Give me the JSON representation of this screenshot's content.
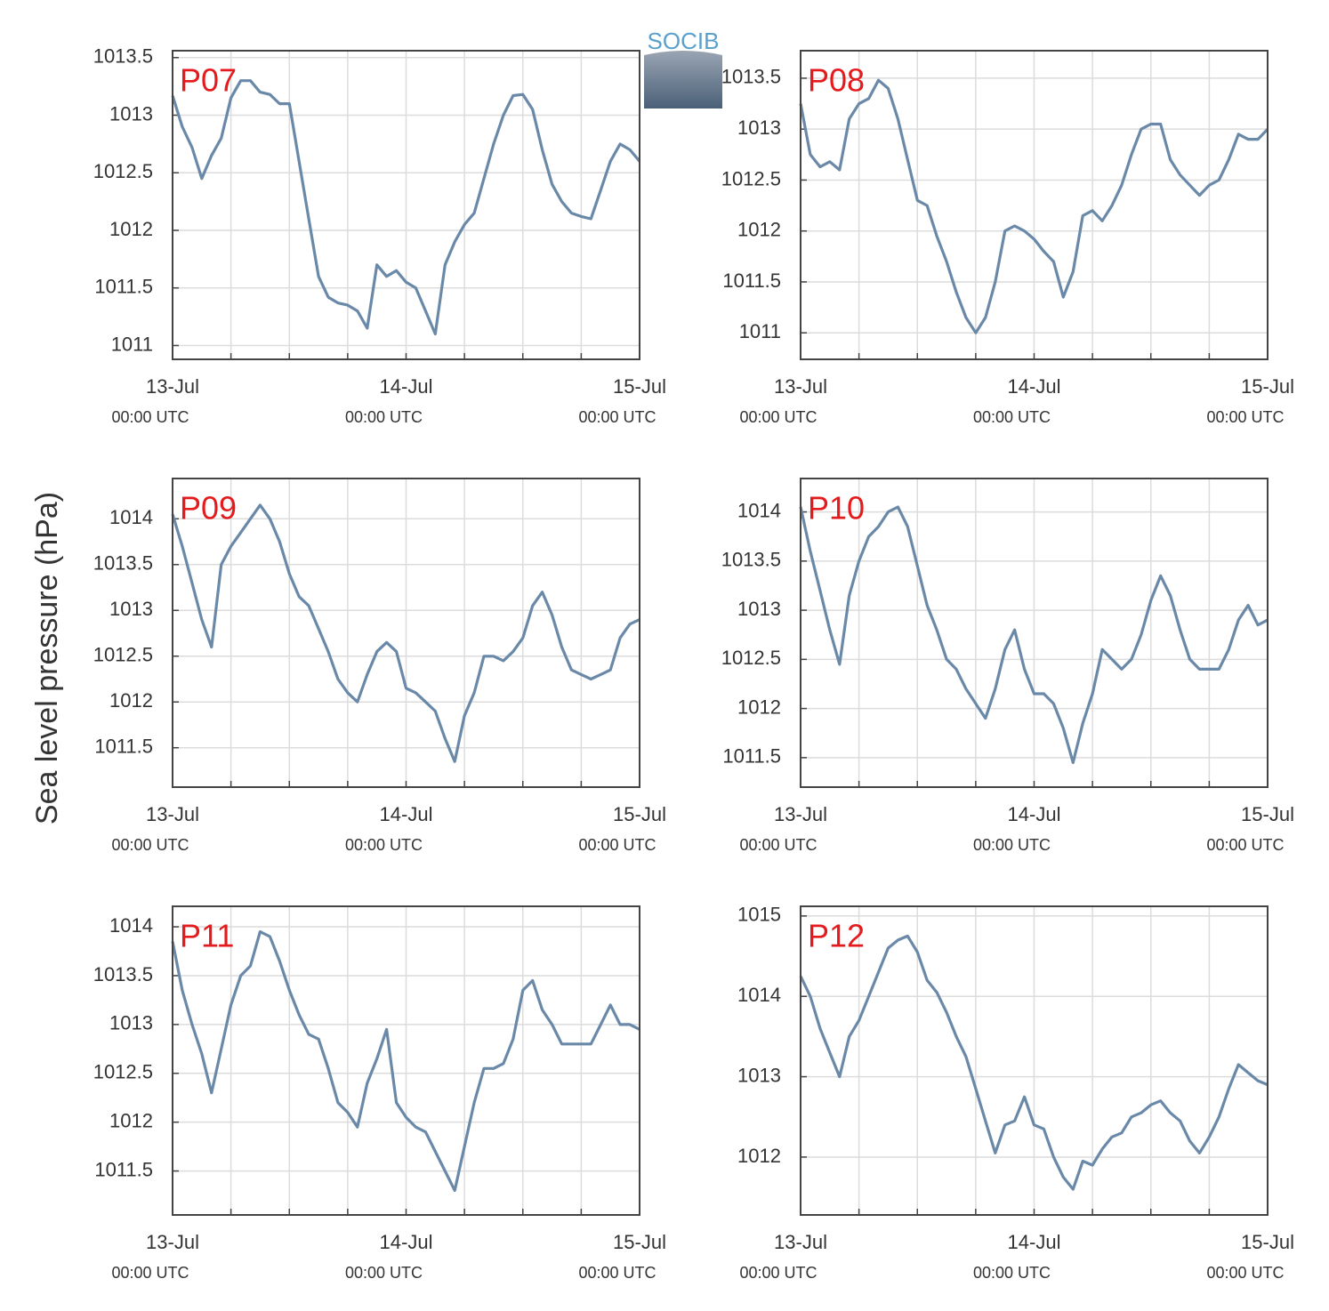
{
  "ylabel": "Sea level pressure (hPa)",
  "logo": "SOCIB",
  "chart_data": [
    {
      "type": "line",
      "title": "P07",
      "x": [
        0,
        1,
        2,
        3,
        4,
        5,
        6,
        7,
        8,
        9,
        10,
        11,
        12,
        13,
        14,
        15,
        16,
        17,
        18,
        19,
        20,
        21,
        22,
        23,
        24,
        25,
        26,
        27,
        28,
        29,
        30,
        31,
        32,
        33,
        34,
        35,
        36,
        37,
        38,
        39,
        40,
        41,
        42,
        43,
        44,
        45,
        46,
        47,
        48
      ],
      "series": [
        {
          "name": "P07",
          "color": "#6a89a8",
          "values": [
            1013.17,
            1012.9,
            1012.72,
            1012.45,
            1012.65,
            1012.8,
            1013.15,
            1013.3,
            1013.3,
            1013.2,
            1013.18,
            1013.1,
            1013.1,
            1012.6,
            1012.1,
            1011.6,
            1011.42,
            1011.37,
            1011.35,
            1011.3,
            1011.15,
            1011.7,
            1011.6,
            1011.65,
            1011.55,
            1011.5,
            1011.3,
            1011.1,
            1011.7,
            1011.9,
            1012.05,
            1012.15,
            1012.45,
            1012.75,
            1013.0,
            1013.17,
            1013.18,
            1013.05,
            1012.7,
            1012.4,
            1012.25,
            1012.15,
            1012.12,
            1012.1,
            1012.35,
            1012.6,
            1012.75,
            1012.7,
            1012.6
          ]
        }
      ],
      "xlim": [
        0,
        48
      ],
      "ylim": [
        1010.88,
        1013.56
      ],
      "yticks": [
        1011,
        1011.5,
        1012,
        1012.5,
        1013,
        1013.5
      ],
      "xticks": [
        {
          "value": 0,
          "label": "13-Jul",
          "sublabel": "00:00 UTC"
        },
        {
          "value": 24,
          "label": "14-Jul",
          "sublabel": "00:00 UTC"
        },
        {
          "value": 48,
          "label": "15-Jul",
          "sublabel": "00:00 UTC"
        }
      ],
      "xminor": [
        6,
        12,
        18,
        30,
        36,
        42
      ],
      "grid": true
    },
    {
      "type": "line",
      "title": "P08",
      "x": [
        0,
        1,
        2,
        3,
        4,
        5,
        6,
        7,
        8,
        9,
        10,
        11,
        12,
        13,
        14,
        15,
        16,
        17,
        18,
        19,
        20,
        21,
        22,
        23,
        24,
        25,
        26,
        27,
        28,
        29,
        30,
        31,
        32,
        33,
        34,
        35,
        36,
        37,
        38,
        39,
        40,
        41,
        42,
        43,
        44,
        45,
        46,
        47,
        48
      ],
      "series": [
        {
          "name": "P08",
          "color": "#6a89a8",
          "values": [
            1013.25,
            1012.75,
            1012.63,
            1012.68,
            1012.6,
            1013.1,
            1013.25,
            1013.3,
            1013.48,
            1013.4,
            1013.1,
            1012.7,
            1012.3,
            1012.25,
            1011.95,
            1011.7,
            1011.4,
            1011.15,
            1011.0,
            1011.15,
            1011.5,
            1012.0,
            1012.05,
            1012.0,
            1011.92,
            1011.8,
            1011.7,
            1011.35,
            1011.6,
            1012.15,
            1012.2,
            1012.1,
            1012.25,
            1012.45,
            1012.75,
            1013.0,
            1013.05,
            1013.05,
            1012.7,
            1012.55,
            1012.45,
            1012.35,
            1012.45,
            1012.5,
            1012.7,
            1012.95,
            1012.9,
            1012.9,
            1013.0
          ]
        }
      ],
      "xlim": [
        0,
        48
      ],
      "ylim": [
        1010.74,
        1013.77
      ],
      "yticks": [
        1011,
        1011.5,
        1012,
        1012.5,
        1013,
        1013.5
      ],
      "xticks": [
        {
          "value": 0,
          "label": "13-Jul",
          "sublabel": "00:00 UTC"
        },
        {
          "value": 24,
          "label": "14-Jul",
          "sublabel": "00:00 UTC"
        },
        {
          "value": 48,
          "label": "15-Jul",
          "sublabel": "00:00 UTC"
        }
      ],
      "xminor": [
        6,
        12,
        18,
        30,
        36,
        42
      ],
      "grid": true
    },
    {
      "type": "line",
      "title": "P09",
      "x": [
        0,
        1,
        2,
        3,
        4,
        5,
        6,
        7,
        8,
        9,
        10,
        11,
        12,
        13,
        14,
        15,
        16,
        17,
        18,
        19,
        20,
        21,
        22,
        23,
        24,
        25,
        26,
        27,
        28,
        29,
        30,
        31,
        32,
        33,
        34,
        35,
        36,
        37,
        38,
        39,
        40,
        41,
        42,
        43,
        44,
        45,
        46,
        47,
        48
      ],
      "series": [
        {
          "name": "P09",
          "color": "#6a89a8",
          "values": [
            1014.05,
            1013.7,
            1013.3,
            1012.9,
            1012.6,
            1013.5,
            1013.7,
            1013.85,
            1014.0,
            1014.15,
            1014.0,
            1013.75,
            1013.4,
            1013.15,
            1013.05,
            1012.8,
            1012.55,
            1012.25,
            1012.1,
            1012.0,
            1012.3,
            1012.55,
            1012.65,
            1012.55,
            1012.15,
            1012.1,
            1012.0,
            1011.9,
            1011.6,
            1011.35,
            1011.85,
            1012.1,
            1012.5,
            1012.5,
            1012.45,
            1012.55,
            1012.7,
            1013.05,
            1013.2,
            1012.95,
            1012.6,
            1012.35,
            1012.3,
            1012.25,
            1012.3,
            1012.35,
            1012.7,
            1012.85,
            1012.9
          ]
        }
      ],
      "xlim": [
        0,
        48
      ],
      "ylim": [
        1011.07,
        1014.44
      ],
      "yticks": [
        1011.5,
        1012,
        1012.5,
        1013,
        1013.5,
        1014
      ],
      "xticks": [
        {
          "value": 0,
          "label": "13-Jul",
          "sublabel": "00:00 UTC"
        },
        {
          "value": 24,
          "label": "14-Jul",
          "sublabel": "00:00 UTC"
        },
        {
          "value": 48,
          "label": "15-Jul",
          "sublabel": "00:00 UTC"
        }
      ],
      "xminor": [
        6,
        12,
        18,
        30,
        36,
        42
      ],
      "grid": true
    },
    {
      "type": "line",
      "title": "P10",
      "x": [
        0,
        1,
        2,
        3,
        4,
        5,
        6,
        7,
        8,
        9,
        10,
        11,
        12,
        13,
        14,
        15,
        16,
        17,
        18,
        19,
        20,
        21,
        22,
        23,
        24,
        25,
        26,
        27,
        28,
        29,
        30,
        31,
        32,
        33,
        34,
        35,
        36,
        37,
        38,
        39,
        40,
        41,
        42,
        43,
        44,
        45,
        46,
        47,
        48
      ],
      "series": [
        {
          "name": "P10",
          "color": "#6a89a8",
          "values": [
            1014.05,
            1013.6,
            1013.2,
            1012.8,
            1012.45,
            1013.15,
            1013.5,
            1013.75,
            1013.85,
            1014.0,
            1014.05,
            1013.85,
            1013.45,
            1013.05,
            1012.8,
            1012.5,
            1012.4,
            1012.2,
            1012.05,
            1011.9,
            1012.2,
            1012.6,
            1012.8,
            1012.4,
            1012.15,
            1012.15,
            1012.05,
            1011.8,
            1011.45,
            1011.85,
            1012.15,
            1012.6,
            1012.5,
            1012.4,
            1012.5,
            1012.75,
            1013.1,
            1013.35,
            1013.15,
            1012.8,
            1012.5,
            1012.4,
            1012.4,
            1012.4,
            1012.6,
            1012.9,
            1013.05,
            1012.85,
            1012.9
          ]
        }
      ],
      "xlim": [
        0,
        48
      ],
      "ylim": [
        1011.2,
        1014.34
      ],
      "yticks": [
        1011.5,
        1012,
        1012.5,
        1013,
        1013.5,
        1014
      ],
      "xticks": [
        {
          "value": 0,
          "label": "13-Jul",
          "sublabel": "00:00 UTC"
        },
        {
          "value": 24,
          "label": "14-Jul",
          "sublabel": "00:00 UTC"
        },
        {
          "value": 48,
          "label": "15-Jul",
          "sublabel": "00:00 UTC"
        }
      ],
      "xminor": [
        6,
        12,
        18,
        30,
        36,
        42
      ],
      "grid": true
    },
    {
      "type": "line",
      "title": "P11",
      "x": [
        0,
        1,
        2,
        3,
        4,
        5,
        6,
        7,
        8,
        9,
        10,
        11,
        12,
        13,
        14,
        15,
        16,
        17,
        18,
        19,
        20,
        21,
        22,
        23,
        24,
        25,
        26,
        27,
        28,
        29,
        30,
        31,
        32,
        33,
        34,
        35,
        36,
        37,
        38,
        39,
        40,
        41,
        42,
        43,
        44,
        45,
        46,
        47,
        48
      ],
      "series": [
        {
          "name": "P11",
          "color": "#6a89a8",
          "values": [
            1013.85,
            1013.35,
            1013.0,
            1012.7,
            1012.3,
            1012.75,
            1013.2,
            1013.5,
            1013.6,
            1013.95,
            1013.9,
            1013.65,
            1013.35,
            1013.1,
            1012.9,
            1012.85,
            1012.55,
            1012.2,
            1012.1,
            1011.95,
            1012.4,
            1012.65,
            1012.95,
            1012.2,
            1012.05,
            1011.95,
            1011.9,
            1011.7,
            1011.5,
            1011.3,
            1011.75,
            1012.2,
            1012.55,
            1012.55,
            1012.6,
            1012.85,
            1013.35,
            1013.45,
            1013.15,
            1013.0,
            1012.8,
            1012.8,
            1012.8,
            1012.8,
            1013.0,
            1013.2,
            1013.0,
            1013.0,
            1012.95
          ]
        }
      ],
      "xlim": [
        0,
        48
      ],
      "ylim": [
        1011.05,
        1014.21
      ],
      "yticks": [
        1011.5,
        1012,
        1012.5,
        1013,
        1013.5,
        1014
      ],
      "xticks": [
        {
          "value": 0,
          "label": "13-Jul",
          "sublabel": "00:00 UTC"
        },
        {
          "value": 24,
          "label": "14-Jul",
          "sublabel": "00:00 UTC"
        },
        {
          "value": 48,
          "label": "15-Jul",
          "sublabel": "00:00 UTC"
        }
      ],
      "xminor": [
        6,
        12,
        18,
        30,
        36,
        42
      ],
      "grid": true
    },
    {
      "type": "line",
      "title": "P12",
      "x": [
        0,
        1,
        2,
        3,
        4,
        5,
        6,
        7,
        8,
        9,
        10,
        11,
        12,
        13,
        14,
        15,
        16,
        17,
        18,
        19,
        20,
        21,
        22,
        23,
        24,
        25,
        26,
        27,
        28,
        29,
        30,
        31,
        32,
        33,
        34,
        35,
        36,
        37,
        38,
        39,
        40,
        41,
        42,
        43,
        44,
        45,
        46,
        47,
        48
      ],
      "series": [
        {
          "name": "P12",
          "color": "#6a89a8",
          "values": [
            1014.25,
            1014.0,
            1013.6,
            1013.3,
            1013.0,
            1013.5,
            1013.7,
            1014.0,
            1014.3,
            1014.6,
            1014.7,
            1014.75,
            1014.55,
            1014.2,
            1014.05,
            1013.8,
            1013.5,
            1013.25,
            1012.85,
            1012.45,
            1012.05,
            1012.4,
            1012.45,
            1012.75,
            1012.4,
            1012.35,
            1012.0,
            1011.75,
            1011.6,
            1011.95,
            1011.9,
            1012.1,
            1012.25,
            1012.3,
            1012.5,
            1012.55,
            1012.65,
            1012.7,
            1012.55,
            1012.45,
            1012.2,
            1012.05,
            1012.25,
            1012.5,
            1012.85,
            1013.15,
            1013.05,
            1012.95,
            1012.9
          ]
        }
      ],
      "xlim": [
        0,
        48
      ],
      "ylim": [
        1011.28,
        1015.12
      ],
      "yticks": [
        1012,
        1013,
        1014,
        1015
      ],
      "xticks": [
        {
          "value": 0,
          "label": "13-Jul",
          "sublabel": "00:00 UTC"
        },
        {
          "value": 24,
          "label": "14-Jul",
          "sublabel": "00:00 UTC"
        },
        {
          "value": 48,
          "label": "15-Jul",
          "sublabel": "00:00 UTC"
        }
      ],
      "xminor": [
        6,
        12,
        18,
        30,
        36,
        42
      ],
      "grid": true
    }
  ]
}
